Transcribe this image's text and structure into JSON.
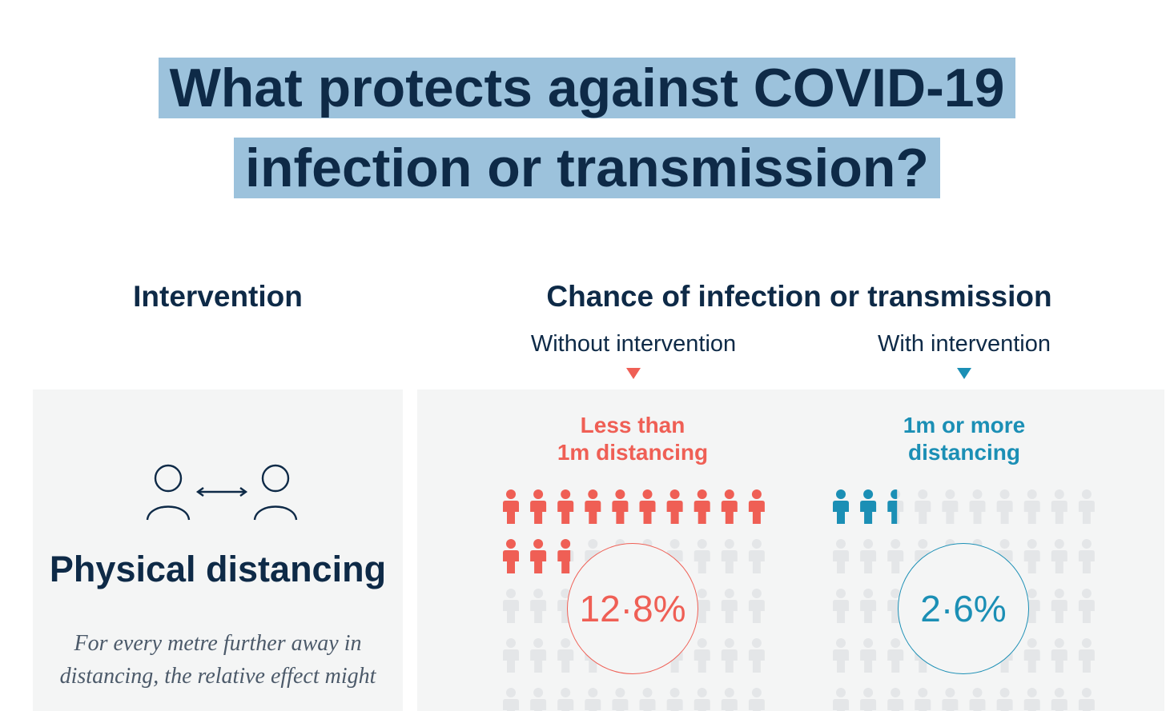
{
  "title": {
    "line1": "What protects against COVID-19",
    "line2": "infection or transmission?"
  },
  "columns": {
    "intervention_header": "Intervention",
    "chance_header": "Chance of infection or transmission",
    "without_label": "Without intervention",
    "with_label": "With intervention"
  },
  "intervention": {
    "icon": "physical-distancing-icon",
    "name": "Physical distancing",
    "description": "For every metre further away in distancing, the relative effect might"
  },
  "groups": {
    "without": {
      "label_line1": "Less than",
      "label_line2": "1m distancing",
      "percentage": "12·8%",
      "value": 12.8,
      "color": "#ef5f55"
    },
    "with": {
      "label_line1": "1m or more",
      "label_line2": "distancing",
      "percentage": "2·6%",
      "value": 2.6,
      "color": "#1b8fb5"
    }
  },
  "colors": {
    "title_highlight": "#9cc2dc",
    "navy": "#0e2a47",
    "panel_bg": "#f4f5f5",
    "inactive_person": "#e4e6e8"
  }
}
